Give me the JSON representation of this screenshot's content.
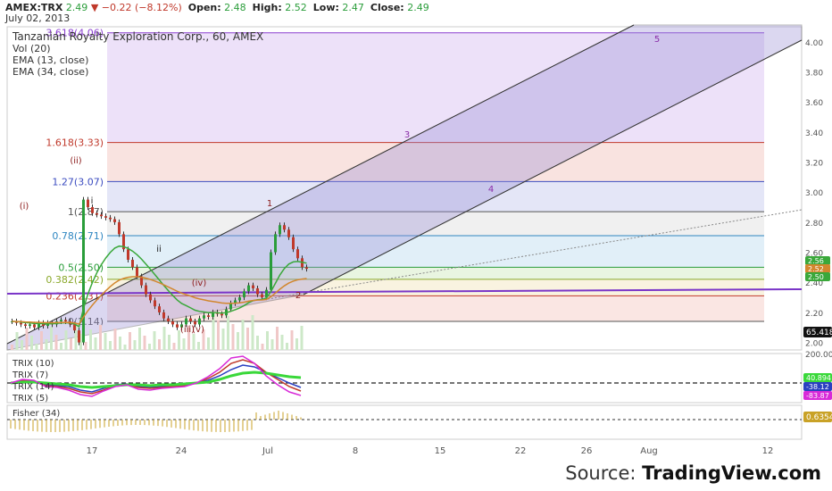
{
  "header": {
    "symbol": "AMEX:TRX",
    "last": "2.49",
    "arrow": "▼",
    "change": "−0.22 (−8.12%)",
    "open_label": "Open:",
    "open": "2.48",
    "high_label": "High:",
    "high": "2.52",
    "low_label": "Low:",
    "low": "2.47",
    "close_label": "Close:",
    "close": "2.49",
    "date": "July 02, 2013"
  },
  "legend": {
    "title": "Tanzanian Royalty Exploration Corp., 60, AMEX",
    "vol": "Vol (20)",
    "ema13": "EMA (13, close)",
    "ema34": "EMA (34, close)"
  },
  "trix_legend": [
    "TRIX (10)",
    "TRIX (7)",
    "TRIX (14)",
    "TRIX (5)"
  ],
  "fisher_legend": "Fisher (34)",
  "source": {
    "prefix": "Source: ",
    "brand": "TradingView.com"
  },
  "colors": {
    "up": "#2a9d3a",
    "down": "#c0392b",
    "ema13": "#3aa83a",
    "ema34": "#d2872e",
    "channel_fill": "#9a8fd6",
    "trend_purple": "#7a35c8"
  },
  "chart_data": [
    {
      "type": "candlestick",
      "title": "Tanzanian Royalty Exploration Corp., 60, AMEX",
      "ylim": [
        1.95,
        4.1
      ],
      "y_ticks": [
        "4.00",
        "3.80",
        "3.60",
        "3.40",
        "3.20",
        "3.00",
        "2.80",
        "2.60",
        "2.40",
        "2.20",
        "2.00"
      ],
      "x_ticks": [
        "17",
        "24",
        "Jul",
        "8",
        "15",
        "22",
        "26",
        "Aug",
        "12"
      ],
      "price_badges": [
        "2.56",
        "2.52",
        "2.50"
      ],
      "fib_levels": [
        {
          "label": "3.618(4.06)",
          "value": 4.06,
          "color": "#8a3fd0"
        },
        {
          "label": "1.618(3.33)",
          "value": 3.33,
          "color": "#c0392b"
        },
        {
          "label": "1.27(3.07)",
          "value": 3.07,
          "color": "#3b4cc0"
        },
        {
          "label": "1(2.87)",
          "value": 2.87,
          "color": "#555555"
        },
        {
          "label": "0.78(2.71)",
          "value": 2.71,
          "color": "#2e86c1"
        },
        {
          "label": "0.5(2.50)",
          "value": 2.5,
          "color": "#2a9d3a"
        },
        {
          "label": "0.382(2.42)",
          "value": 2.42,
          "color": "#8aa82a"
        },
        {
          "label": "0.236(2.31)",
          "value": 2.31,
          "color": "#c0392b"
        },
        {
          "label": "0(2.14)",
          "value": 2.14,
          "color": "#555555"
        }
      ],
      "wave_labels": [
        "(i)",
        "(ii)",
        "i",
        "ii",
        "(iii)",
        "(iv)",
        "(v)",
        "1",
        "2",
        "3",
        "4",
        "5"
      ],
      "close_series": [
        2.14,
        2.13,
        2.12,
        2.11,
        2.12,
        2.1,
        2.13,
        2.11,
        2.13,
        2.12,
        2.14,
        2.15,
        2.14,
        2.12,
        2.08,
        2.0,
        2.95,
        2.9,
        2.86,
        2.85,
        2.84,
        2.83,
        2.82,
        2.8,
        2.72,
        2.62,
        2.55,
        2.5,
        2.44,
        2.38,
        2.32,
        2.28,
        2.24,
        2.2,
        2.16,
        2.14,
        2.12,
        2.1,
        2.12,
        2.16,
        2.14,
        2.12,
        2.16,
        2.18,
        2.17,
        2.2,
        2.19,
        2.18,
        2.22,
        2.26,
        2.28,
        2.3,
        2.34,
        2.38,
        2.36,
        2.32,
        2.3,
        2.35,
        2.6,
        2.72,
        2.78,
        2.75,
        2.7,
        2.62,
        2.56,
        2.5,
        2.49
      ],
      "volume_label": "Vol (20)"
    },
    {
      "type": "line",
      "name": "TRIX panel",
      "series": [
        {
          "name": "TRIX (10)"
        },
        {
          "name": "TRIX (7)"
        },
        {
          "name": "TRIX (14)"
        },
        {
          "name": "TRIX (5)"
        }
      ],
      "y_ticks": [
        "200.00"
      ],
      "value_badges": [
        "40.894",
        "-38.12",
        "-83.87"
      ]
    },
    {
      "type": "bar",
      "name": "Fisher panel",
      "series": [
        {
          "name": "Fisher (34)"
        }
      ],
      "value_badges": [
        "0.6354"
      ]
    }
  ],
  "volume_badge": "65.418"
}
